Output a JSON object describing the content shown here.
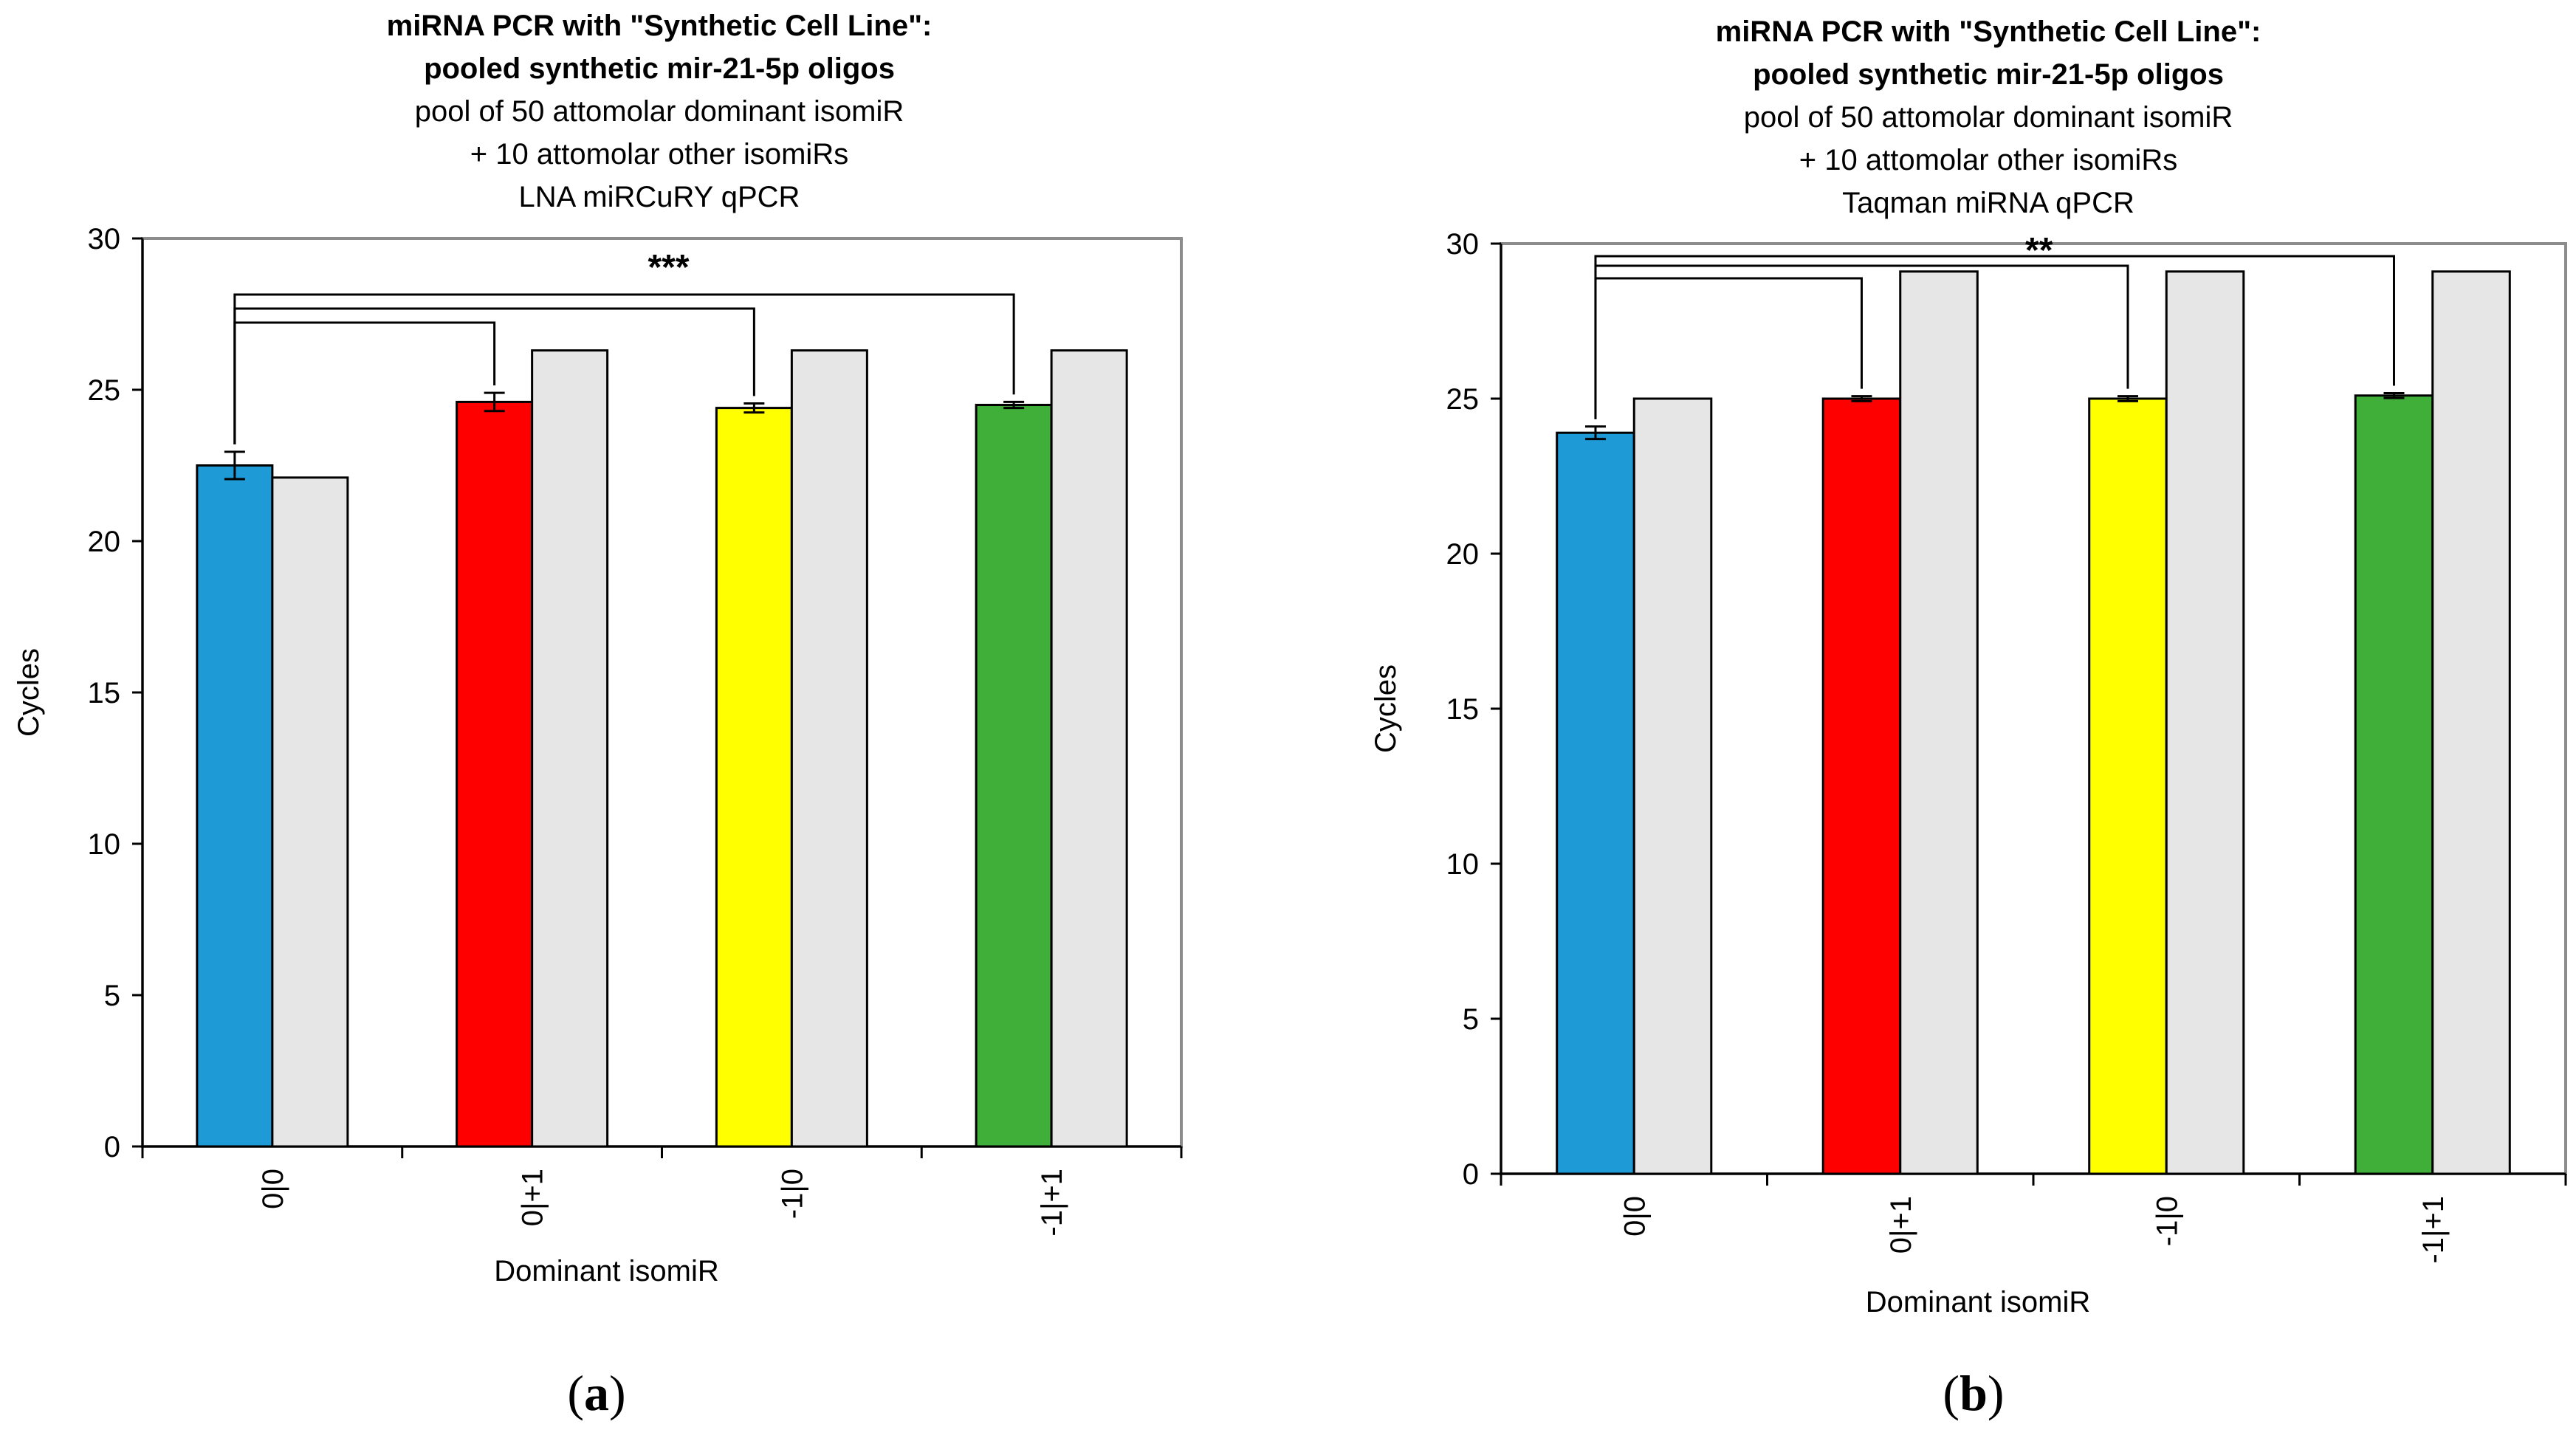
{
  "chart_data": [
    {
      "id": "a",
      "type": "bar",
      "panel_label": "a",
      "title_lines_bold": [
        "miRNA PCR with \"Synthetic Cell Line\":",
        "pooled synthetic mir-21-5p oligos"
      ],
      "title_lines": [
        "pool of 50 attomolar dominant isomiR",
        "+ 10 attomolar other isomiRs",
        "LNA miRCuRY qPCR"
      ],
      "xlabel": "Dominant isomiR",
      "ylabel": "Cycles",
      "ylim": [
        0,
        30
      ],
      "yticks": [
        0,
        5,
        10,
        15,
        20,
        25,
        30
      ],
      "categories": [
        "0|0",
        "0|+1",
        "-1|0",
        "-1|+1"
      ],
      "series": [
        {
          "name": "Dominant isomiR",
          "values": [
            22.5,
            24.6,
            24.4,
            24.5
          ],
          "errors": [
            0.45,
            0.3,
            0.15,
            0.1
          ],
          "colors": [
            "#1e9ad6",
            "#ff0000",
            "#ffff00",
            "#3faf3a"
          ]
        },
        {
          "name": "Other isomiRs",
          "values": [
            22.1,
            26.3,
            26.3,
            26.3
          ],
          "colors": [
            "#e6e6e6",
            "#e6e6e6",
            "#e6e6e6",
            "#e6e6e6"
          ]
        }
      ],
      "significance": {
        "label": "***",
        "comparisons": [
          [
            0,
            1
          ],
          [
            0,
            2
          ],
          [
            0,
            3
          ]
        ]
      }
    },
    {
      "id": "b",
      "type": "bar",
      "panel_label": "b",
      "title_lines_bold": [
        "miRNA PCR with \"Synthetic Cell Line\":",
        "pooled synthetic mir-21-5p oligos"
      ],
      "title_lines": [
        "pool of 50 attomolar dominant isomiR",
        "+ 10 attomolar other isomiRs",
        "Taqman miRNA qPCR"
      ],
      "xlabel": "Dominant isomiR",
      "ylabel": "Cycles",
      "ylim": [
        0,
        30
      ],
      "yticks": [
        0,
        5,
        10,
        15,
        20,
        25,
        30
      ],
      "categories": [
        "0|0",
        "0|+1",
        "-1|0",
        "-1|+1"
      ],
      "series": [
        {
          "name": "Dominant isomiR",
          "values": [
            23.9,
            25.0,
            25.0,
            25.1
          ],
          "errors": [
            0.2,
            0.08,
            0.08,
            0.08
          ],
          "colors": [
            "#1e9ad6",
            "#ff0000",
            "#ffff00",
            "#3faf3a"
          ]
        },
        {
          "name": "Other isomiRs",
          "values": [
            25.0,
            29.1,
            29.1,
            29.1
          ],
          "colors": [
            "#e6e6e6",
            "#e6e6e6",
            "#e6e6e6",
            "#e6e6e6"
          ]
        }
      ],
      "significance": {
        "label": "**",
        "comparisons": [
          [
            0,
            1
          ],
          [
            0,
            2
          ],
          [
            0,
            3
          ]
        ]
      }
    }
  ]
}
